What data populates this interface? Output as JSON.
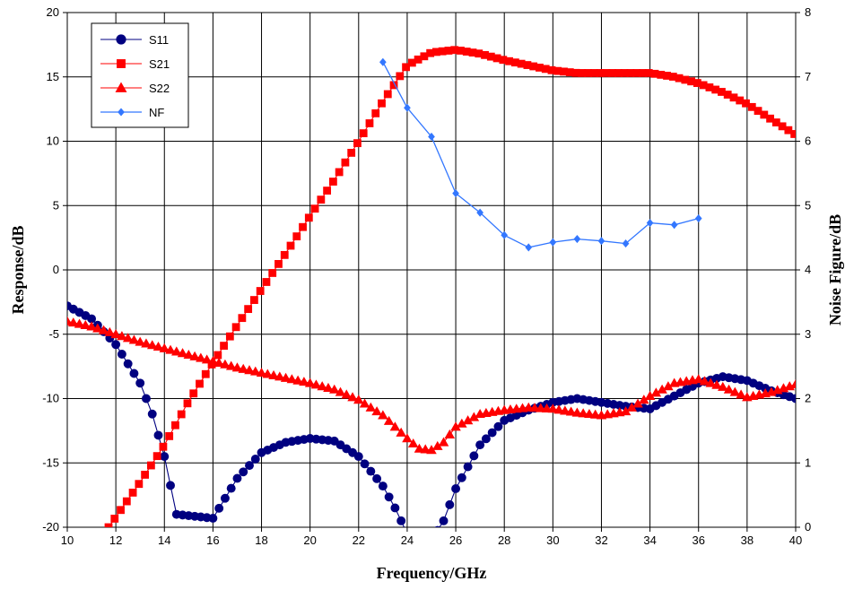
{
  "chart_data": {
    "type": "line",
    "title": "",
    "xlabel": "Frequency/GHz",
    "ylabel": "Response/dB",
    "y2label": "Noise Figure/dB",
    "xlim": [
      10,
      40
    ],
    "ylim": [
      -20,
      20
    ],
    "y2lim": [
      0,
      8
    ],
    "xticks": [
      "10",
      "12",
      "14",
      "16",
      "18",
      "20",
      "22",
      "24",
      "26",
      "28",
      "30",
      "32",
      "34",
      "36",
      "38",
      "40"
    ],
    "yticks": [
      "20",
      "15",
      "10",
      "5",
      "0",
      "-5",
      "-10",
      "-15",
      "-20"
    ],
    "y2ticks": [
      "8",
      "7",
      "6",
      "5",
      "4",
      "3",
      "2",
      "1",
      "0"
    ],
    "grid": true,
    "legend_position": "top-left",
    "series": [
      {
        "name": "S11",
        "axis": "left",
        "color": "#000080",
        "marker": "circle",
        "x": [
          10,
          11,
          12,
          13,
          13.5,
          14,
          14.5,
          16,
          17,
          18,
          19,
          20,
          21,
          22,
          23,
          23.5,
          24,
          25,
          25.5,
          26,
          27,
          28,
          29,
          30,
          31,
          32,
          33,
          34,
          35,
          36,
          37,
          38,
          39,
          40
        ],
        "y": [
          -2.8,
          -3.8,
          -5.8,
          -8.8,
          -11.2,
          -14.5,
          -19,
          -19.3,
          -16.2,
          -14.2,
          -13.4,
          -13.1,
          -13.3,
          -14.5,
          -16.8,
          -18.5,
          -20.5,
          -21,
          -19.5,
          -17,
          -13.6,
          -11.7,
          -10.9,
          -10.3,
          -10,
          -10.3,
          -10.6,
          -10.8,
          -9.8,
          -8.8,
          -8.3,
          -8.6,
          -9.4,
          -10
        ]
      },
      {
        "name": "S21",
        "axis": "left",
        "color": "#ff0000",
        "marker": "square",
        "x": [
          11.7,
          12,
          13,
          14,
          15,
          16,
          17,
          18,
          19,
          20,
          21,
          22,
          23,
          24,
          25,
          26,
          27,
          28,
          29,
          30,
          31,
          32,
          33,
          34,
          35,
          36,
          37,
          38,
          39,
          40
        ],
        "y": [
          -20,
          -19.2,
          -16.5,
          -13.6,
          -10.2,
          -7.2,
          -4.3,
          -1.5,
          1.3,
          4.2,
          7,
          10,
          13.1,
          15.9,
          16.9,
          17.1,
          16.8,
          16.3,
          15.9,
          15.5,
          15.3,
          15.3,
          15.3,
          15.3,
          15,
          14.5,
          13.8,
          12.9,
          11.7,
          10.5
        ]
      },
      {
        "name": "S22",
        "axis": "left",
        "color": "#ff0000",
        "marker": "triangle",
        "x": [
          10,
          11,
          12,
          13,
          14,
          15,
          16,
          17,
          18,
          19,
          20,
          21,
          22,
          23,
          24,
          24.5,
          25,
          25.5,
          26,
          27,
          28,
          29,
          30,
          31,
          32,
          33,
          34,
          35,
          36,
          37,
          38,
          39,
          40
        ],
        "y": [
          -4,
          -4.4,
          -5,
          -5.6,
          -6.1,
          -6.6,
          -7.1,
          -7.6,
          -8,
          -8.4,
          -8.8,
          -9.3,
          -10.1,
          -11.3,
          -13.1,
          -13.9,
          -14,
          -13.4,
          -12.2,
          -11.2,
          -10.9,
          -10.7,
          -10.8,
          -11.1,
          -11.3,
          -11,
          -9.8,
          -8.8,
          -8.5,
          -9.1,
          -9.9,
          -9.5,
          -8.9
        ]
      },
      {
        "name": "NF",
        "axis": "right",
        "color": "#3377ff",
        "marker": "diamond",
        "x": [
          23,
          24,
          25,
          26,
          27,
          28,
          29,
          30,
          31,
          32,
          33,
          34,
          35,
          36
        ],
        "y": [
          7.23,
          6.52,
          6.07,
          5.19,
          4.89,
          4.54,
          4.35,
          4.43,
          4.48,
          4.45,
          4.41,
          4.73,
          4.7,
          4.8
        ]
      }
    ]
  }
}
